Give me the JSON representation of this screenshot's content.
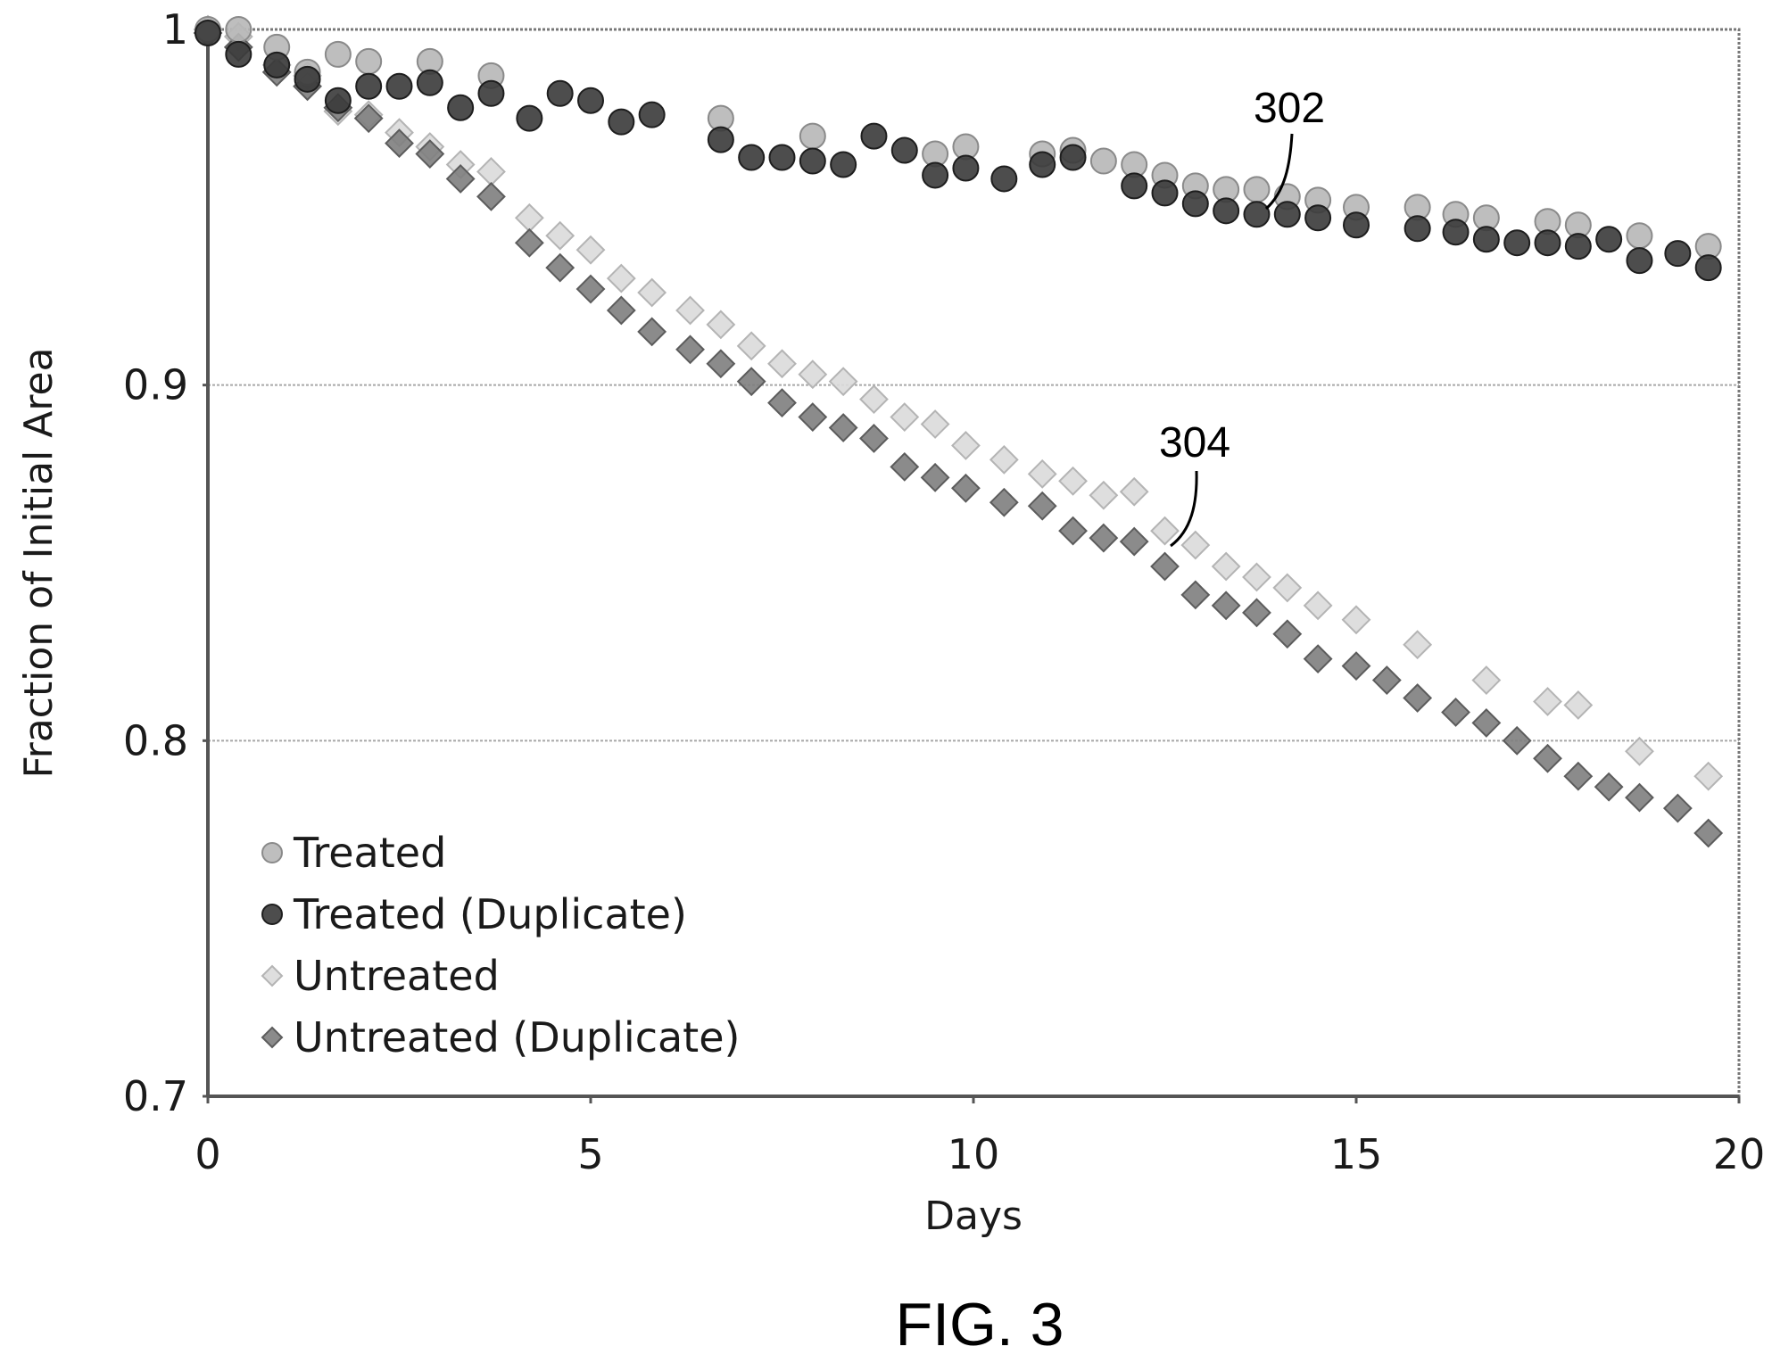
{
  "figure_label": "FIG. 3",
  "colors": {
    "treated": "#b7b7b7",
    "treated_duplicate": "#3a3a3a",
    "untreated": "#dadada",
    "untreated_duplicate": "#7e7e7e",
    "grid": "#a8a8a8",
    "axis": "#555555"
  },
  "chart_data": {
    "type": "scatter",
    "title": "",
    "xlabel": "Days",
    "ylabel": "Fraction of Initial Area",
    "xlim": [
      0,
      20
    ],
    "ylim": [
      0.7,
      1
    ],
    "xticks": [
      "0",
      "5",
      "10",
      "15",
      "20"
    ],
    "yticks": [
      "0.7",
      "0.8",
      "0.9",
      "1"
    ],
    "grid": "horizontal",
    "legend_position": "bottom-left",
    "annotations": [
      {
        "label": "302",
        "target_series": "Treated"
      },
      {
        "label": "304",
        "target_series": "Untreated"
      }
    ],
    "series": [
      {
        "name": "Treated",
        "marker": "circle",
        "points": [
          [
            0,
            1
          ],
          [
            0.4,
            1
          ],
          [
            0.9,
            0.995
          ],
          [
            1.3,
            0.988
          ],
          [
            1.7,
            0.993
          ],
          [
            2.1,
            0.991
          ],
          [
            2.9,
            0.991
          ],
          [
            3.7,
            0.987
          ],
          [
            6.7,
            0.975
          ],
          [
            7.9,
            0.97
          ],
          [
            9.5,
            0.965
          ],
          [
            9.9,
            0.967
          ],
          [
            10.9,
            0.965
          ],
          [
            11.3,
            0.966
          ],
          [
            11.7,
            0.963
          ],
          [
            12.1,
            0.962
          ],
          [
            12.5,
            0.959
          ],
          [
            12.9,
            0.956
          ],
          [
            13.3,
            0.955
          ],
          [
            13.7,
            0.955
          ],
          [
            14.1,
            0.953
          ],
          [
            14.5,
            0.952
          ],
          [
            15.0,
            0.95
          ],
          [
            15.8,
            0.95
          ],
          [
            16.3,
            0.948
          ],
          [
            16.7,
            0.947
          ],
          [
            17.5,
            0.946
          ],
          [
            17.9,
            0.945
          ],
          [
            18.7,
            0.942
          ],
          [
            19.6,
            0.939
          ]
        ]
      },
      {
        "name": "Treated (Duplicate)",
        "marker": "circle",
        "points": [
          [
            0,
            0.999
          ],
          [
            0.4,
            0.993
          ],
          [
            0.9,
            0.99
          ],
          [
            1.3,
            0.986
          ],
          [
            1.7,
            0.98
          ],
          [
            2.1,
            0.984
          ],
          [
            2.5,
            0.984
          ],
          [
            2.9,
            0.985
          ],
          [
            3.3,
            0.978
          ],
          [
            3.7,
            0.982
          ],
          [
            4.2,
            0.975
          ],
          [
            4.6,
            0.982
          ],
          [
            5.0,
            0.98
          ],
          [
            5.4,
            0.974
          ],
          [
            5.8,
            0.976
          ],
          [
            6.7,
            0.969
          ],
          [
            7.1,
            0.964
          ],
          [
            7.5,
            0.964
          ],
          [
            7.9,
            0.963
          ],
          [
            8.3,
            0.962
          ],
          [
            8.7,
            0.97
          ],
          [
            9.1,
            0.966
          ],
          [
            9.5,
            0.959
          ],
          [
            9.9,
            0.961
          ],
          [
            10.4,
            0.958
          ],
          [
            10.9,
            0.962
          ],
          [
            11.3,
            0.964
          ],
          [
            12.1,
            0.956
          ],
          [
            12.5,
            0.954
          ],
          [
            12.9,
            0.951
          ],
          [
            13.3,
            0.949
          ],
          [
            13.7,
            0.948
          ],
          [
            14.1,
            0.948
          ],
          [
            14.5,
            0.947
          ],
          [
            15.0,
            0.945
          ],
          [
            15.8,
            0.944
          ],
          [
            16.3,
            0.943
          ],
          [
            16.7,
            0.941
          ],
          [
            17.1,
            0.94
          ],
          [
            17.5,
            0.94
          ],
          [
            17.9,
            0.939
          ],
          [
            18.3,
            0.941
          ],
          [
            18.7,
            0.935
          ],
          [
            19.2,
            0.937
          ],
          [
            19.6,
            0.933
          ]
        ]
      },
      {
        "name": "Untreated",
        "marker": "diamond",
        "points": [
          [
            0,
            1
          ],
          [
            0.4,
            0.998
          ],
          [
            0.9,
            0.99
          ],
          [
            1.3,
            0.987
          ],
          [
            1.7,
            0.977
          ],
          [
            2.1,
            0.976
          ],
          [
            2.5,
            0.971
          ],
          [
            2.9,
            0.967
          ],
          [
            3.3,
            0.962
          ],
          [
            3.7,
            0.96
          ],
          [
            4.2,
            0.947
          ],
          [
            4.6,
            0.942
          ],
          [
            5.0,
            0.938
          ],
          [
            5.4,
            0.93
          ],
          [
            5.8,
            0.926
          ],
          [
            6.3,
            0.921
          ],
          [
            6.7,
            0.917
          ],
          [
            7.1,
            0.911
          ],
          [
            7.5,
            0.906
          ],
          [
            7.9,
            0.903
          ],
          [
            8.3,
            0.901
          ],
          [
            8.7,
            0.896
          ],
          [
            9.1,
            0.891
          ],
          [
            9.5,
            0.889
          ],
          [
            9.9,
            0.883
          ],
          [
            10.4,
            0.879
          ],
          [
            10.9,
            0.875
          ],
          [
            11.3,
            0.873
          ],
          [
            11.7,
            0.869
          ],
          [
            12.1,
            0.87
          ],
          [
            12.5,
            0.859
          ],
          [
            12.9,
            0.855
          ],
          [
            13.3,
            0.849
          ],
          [
            13.7,
            0.846
          ],
          [
            14.1,
            0.843
          ],
          [
            14.5,
            0.838
          ],
          [
            15.0,
            0.834
          ],
          [
            15.8,
            0.827
          ],
          [
            16.7,
            0.817
          ],
          [
            17.5,
            0.811
          ],
          [
            17.9,
            0.81
          ],
          [
            18.7,
            0.797
          ],
          [
            19.6,
            0.79
          ]
        ]
      },
      {
        "name": "Untreated (Duplicate)",
        "marker": "diamond",
        "points": [
          [
            0,
            0.999
          ],
          [
            0.4,
            0.995
          ],
          [
            0.9,
            0.988
          ],
          [
            1.3,
            0.984
          ],
          [
            1.7,
            0.978
          ],
          [
            2.1,
            0.975
          ],
          [
            2.5,
            0.968
          ],
          [
            2.9,
            0.965
          ],
          [
            3.3,
            0.958
          ],
          [
            3.7,
            0.953
          ],
          [
            4.2,
            0.94
          ],
          [
            4.6,
            0.933
          ],
          [
            5.0,
            0.927
          ],
          [
            5.4,
            0.921
          ],
          [
            5.8,
            0.915
          ],
          [
            6.3,
            0.91
          ],
          [
            6.7,
            0.906
          ],
          [
            7.1,
            0.901
          ],
          [
            7.5,
            0.895
          ],
          [
            7.9,
            0.891
          ],
          [
            8.3,
            0.888
          ],
          [
            8.7,
            0.885
          ],
          [
            9.1,
            0.877
          ],
          [
            9.5,
            0.874
          ],
          [
            9.9,
            0.871
          ],
          [
            10.4,
            0.867
          ],
          [
            10.9,
            0.866
          ],
          [
            11.3,
            0.859
          ],
          [
            11.7,
            0.857
          ],
          [
            12.1,
            0.856
          ],
          [
            12.5,
            0.849
          ],
          [
            12.9,
            0.841
          ],
          [
            13.3,
            0.838
          ],
          [
            13.7,
            0.836
          ],
          [
            14.1,
            0.83
          ],
          [
            14.5,
            0.823
          ],
          [
            15.0,
            0.821
          ],
          [
            15.4,
            0.817
          ],
          [
            15.8,
            0.812
          ],
          [
            16.3,
            0.808
          ],
          [
            16.7,
            0.805
          ],
          [
            17.1,
            0.8
          ],
          [
            17.5,
            0.795
          ],
          [
            17.9,
            0.79
          ],
          [
            18.3,
            0.787
          ],
          [
            18.7,
            0.784
          ],
          [
            19.2,
            0.781
          ],
          [
            19.6,
            0.774
          ]
        ]
      }
    ]
  }
}
